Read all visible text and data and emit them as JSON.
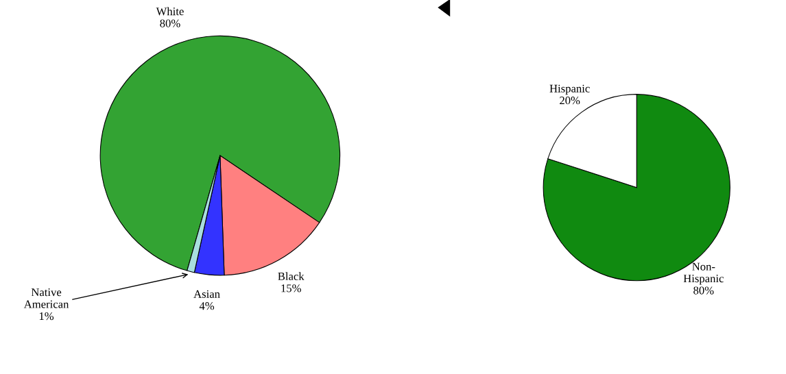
{
  "chart_data": [
    {
      "type": "pie",
      "categories": [
        "White",
        "Black",
        "Asian",
        "Native American"
      ],
      "values": [
        80,
        15,
        4,
        1
      ],
      "colors": [
        "#33a333",
        "#ff8080",
        "#3333ff",
        "#a8dede"
      ],
      "value_labels": [
        "80%",
        "15%",
        "4%",
        "1%"
      ]
    },
    {
      "type": "pie",
      "categories": [
        "Non-Hispanic",
        "Hispanic"
      ],
      "values": [
        80,
        20
      ],
      "colors": [
        "#108a10",
        "#ffffff"
      ],
      "value_labels": [
        "80%",
        "20%"
      ]
    }
  ]
}
